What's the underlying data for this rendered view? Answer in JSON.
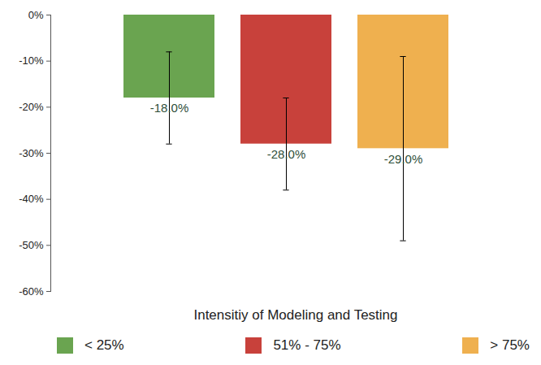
{
  "chart_data": {
    "type": "bar",
    "x_label": "Intensitiy of Modeling and Testing",
    "categories": [
      "< 25%",
      "51% - 75%",
      "> 75%"
    ],
    "values": [
      -18,
      -28,
      -29
    ],
    "value_labels": [
      "-18.0%",
      "-28.0%",
      "-29.0%"
    ],
    "error_low": [
      -28,
      -38,
      -49
    ],
    "error_high": [
      -8,
      -18,
      -9
    ],
    "colors": [
      "#6aa450",
      "#c8413b",
      "#efb04f"
    ],
    "ylim": [
      -60,
      0
    ],
    "yticks": [
      {
        "value": 0,
        "label": "0%"
      },
      {
        "value": -10,
        "label": "-10%"
      },
      {
        "value": -20,
        "label": "-20%"
      },
      {
        "value": -30,
        "label": "-30%"
      },
      {
        "value": -40,
        "label": "-40%"
      },
      {
        "value": -50,
        "label": "-50%"
      },
      {
        "value": -60,
        "label": "-60%"
      }
    ],
    "grid": false,
    "legend": "bottom",
    "data_labels": true,
    "tick_labels": "y"
  }
}
